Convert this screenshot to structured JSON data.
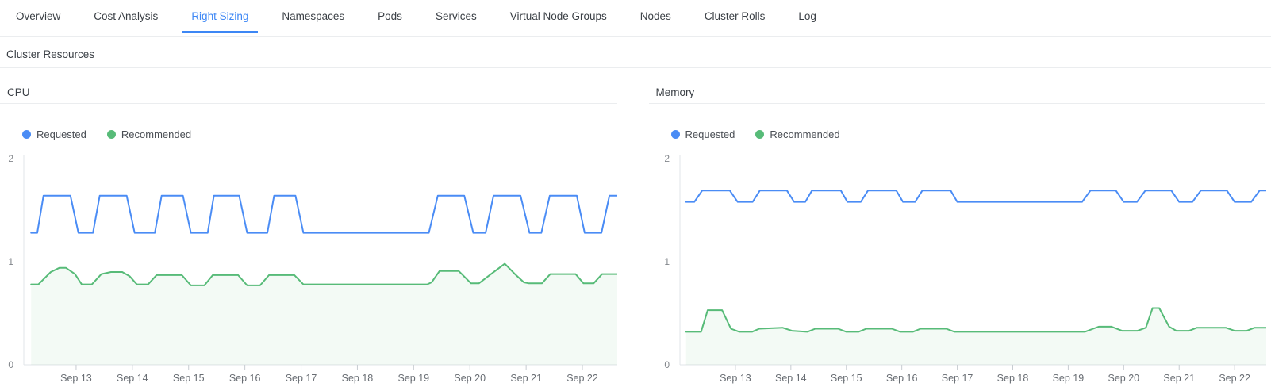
{
  "colors": {
    "accent": "#3d87f5",
    "requested": "#4a8cf5",
    "recommended": "#57bb78"
  },
  "tabs": {
    "items": [
      {
        "label": "Overview",
        "active": false
      },
      {
        "label": "Cost Analysis",
        "active": false
      },
      {
        "label": "Right Sizing",
        "active": true
      },
      {
        "label": "Namespaces",
        "active": false
      },
      {
        "label": "Pods",
        "active": false
      },
      {
        "label": "Services",
        "active": false
      },
      {
        "label": "Virtual Node Groups",
        "active": false
      },
      {
        "label": "Nodes",
        "active": false
      },
      {
        "label": "Cluster Rolls",
        "active": false
      },
      {
        "label": "Log",
        "active": false
      }
    ]
  },
  "section": {
    "title": "Cluster Resources"
  },
  "chart_data": [
    {
      "type": "line",
      "title": "CPU",
      "ylim": [
        0,
        2
      ],
      "yticks": [
        0,
        1,
        2
      ],
      "x_domain": [
        12.07,
        22.62
      ],
      "x_unit": "date (September)",
      "grid": false,
      "legend_position": "top-left",
      "x_ticks": {
        "values": [
          13,
          14,
          15,
          16,
          17,
          18,
          19,
          20,
          21,
          22
        ],
        "labels": [
          "Sep 13",
          "Sep 14",
          "Sep 15",
          "Sep 16",
          "Sep 17",
          "Sep 18",
          "Sep 19",
          "Sep 20",
          "Sep 21",
          "Sep 22"
        ]
      },
      "layout": {
        "axis_x": 30
      },
      "series": [
        {
          "name": "Requested",
          "color": "#4a8cf5",
          "fill": false,
          "points": [
            [
              12.2,
              1.28
            ],
            [
              12.31,
              1.28
            ],
            [
              12.42,
              1.64
            ],
            [
              12.9,
              1.64
            ],
            [
              13.04,
              1.28
            ],
            [
              13.3,
              1.28
            ],
            [
              13.42,
              1.64
            ],
            [
              13.9,
              1.64
            ],
            [
              14.04,
              1.28
            ],
            [
              14.4,
              1.28
            ],
            [
              14.52,
              1.64
            ],
            [
              14.9,
              1.64
            ],
            [
              15.04,
              1.28
            ],
            [
              15.34,
              1.28
            ],
            [
              15.45,
              1.64
            ],
            [
              15.9,
              1.64
            ],
            [
              16.04,
              1.28
            ],
            [
              16.4,
              1.28
            ],
            [
              16.52,
              1.64
            ],
            [
              16.9,
              1.64
            ],
            [
              17.04,
              1.28
            ],
            [
              19.27,
              1.28
            ],
            [
              19.43,
              1.64
            ],
            [
              19.9,
              1.64
            ],
            [
              20.06,
              1.28
            ],
            [
              20.28,
              1.28
            ],
            [
              20.42,
              1.64
            ],
            [
              20.9,
              1.64
            ],
            [
              21.06,
              1.28
            ],
            [
              21.27,
              1.28
            ],
            [
              21.42,
              1.64
            ],
            [
              21.9,
              1.64
            ],
            [
              22.04,
              1.28
            ],
            [
              22.34,
              1.28
            ],
            [
              22.48,
              1.64
            ],
            [
              22.62,
              1.64
            ]
          ]
        },
        {
          "name": "Recommended",
          "color": "#57bb78",
          "fill": true,
          "fill_color": "rgba(87,187,120,0.07)",
          "points": [
            [
              12.2,
              0.78
            ],
            [
              12.33,
              0.78
            ],
            [
              12.55,
              0.9
            ],
            [
              12.7,
              0.94
            ],
            [
              12.82,
              0.94
            ],
            [
              12.98,
              0.88
            ],
            [
              13.1,
              0.78
            ],
            [
              13.28,
              0.78
            ],
            [
              13.45,
              0.88
            ],
            [
              13.62,
              0.9
            ],
            [
              13.82,
              0.9
            ],
            [
              13.95,
              0.86
            ],
            [
              14.08,
              0.78
            ],
            [
              14.28,
              0.78
            ],
            [
              14.43,
              0.87
            ],
            [
              14.88,
              0.87
            ],
            [
              15.04,
              0.77
            ],
            [
              15.28,
              0.77
            ],
            [
              15.43,
              0.87
            ],
            [
              15.88,
              0.87
            ],
            [
              16.04,
              0.77
            ],
            [
              16.27,
              0.77
            ],
            [
              16.43,
              0.87
            ],
            [
              16.88,
              0.87
            ],
            [
              17.04,
              0.78
            ],
            [
              19.24,
              0.78
            ],
            [
              19.32,
              0.8
            ],
            [
              19.46,
              0.91
            ],
            [
              19.8,
              0.91
            ],
            [
              20.02,
              0.79
            ],
            [
              20.16,
              0.79
            ],
            [
              20.35,
              0.87
            ],
            [
              20.62,
              0.98
            ],
            [
              20.8,
              0.88
            ],
            [
              20.96,
              0.8
            ],
            [
              21.05,
              0.79
            ],
            [
              21.28,
              0.79
            ],
            [
              21.43,
              0.88
            ],
            [
              21.88,
              0.88
            ],
            [
              22.02,
              0.79
            ],
            [
              22.2,
              0.79
            ],
            [
              22.35,
              0.88
            ],
            [
              22.62,
              0.88
            ]
          ]
        }
      ]
    },
    {
      "type": "line",
      "title": "Memory",
      "ylim": [
        0,
        2
      ],
      "yticks": [
        0,
        1,
        2
      ],
      "x_domain": [
        12.0,
        22.57
      ],
      "x_unit": "date (September)",
      "grid": false,
      "legend_position": "top-left",
      "x_ticks": {
        "values": [
          13,
          14,
          15,
          16,
          17,
          18,
          19,
          20,
          21,
          22
        ],
        "labels": [
          "Sep 13",
          "Sep 14",
          "Sep 15",
          "Sep 16",
          "Sep 17",
          "Sep 18",
          "Sep 19",
          "Sep 20",
          "Sep 21",
          "Sep 22"
        ]
      },
      "layout": {
        "axis_x": 39
      },
      "series": [
        {
          "name": "Requested",
          "color": "#4a8cf5",
          "fill": false,
          "points": [
            [
              12.11,
              1.58
            ],
            [
              12.26,
              1.58
            ],
            [
              12.4,
              1.69
            ],
            [
              12.9,
              1.69
            ],
            [
              13.04,
              1.58
            ],
            [
              13.31,
              1.58
            ],
            [
              13.44,
              1.69
            ],
            [
              13.93,
              1.69
            ],
            [
              14.06,
              1.58
            ],
            [
              14.26,
              1.58
            ],
            [
              14.38,
              1.69
            ],
            [
              14.9,
              1.69
            ],
            [
              15.02,
              1.58
            ],
            [
              15.26,
              1.58
            ],
            [
              15.39,
              1.69
            ],
            [
              15.9,
              1.69
            ],
            [
              16.02,
              1.58
            ],
            [
              16.24,
              1.58
            ],
            [
              16.37,
              1.69
            ],
            [
              16.88,
              1.69
            ],
            [
              17.0,
              1.58
            ],
            [
              19.25,
              1.58
            ],
            [
              19.4,
              1.69
            ],
            [
              19.86,
              1.69
            ],
            [
              20.0,
              1.58
            ],
            [
              20.24,
              1.58
            ],
            [
              20.39,
              1.69
            ],
            [
              20.86,
              1.69
            ],
            [
              21.0,
              1.58
            ],
            [
              21.24,
              1.58
            ],
            [
              21.39,
              1.69
            ],
            [
              21.86,
              1.69
            ],
            [
              22.0,
              1.58
            ],
            [
              22.3,
              1.58
            ],
            [
              22.45,
              1.69
            ],
            [
              22.57,
              1.69
            ]
          ]
        },
        {
          "name": "Recommended",
          "color": "#57bb78",
          "fill": true,
          "fill_color": "rgba(87,187,120,0.07)",
          "points": [
            [
              12.11,
              0.32
            ],
            [
              12.38,
              0.32
            ],
            [
              12.5,
              0.53
            ],
            [
              12.76,
              0.53
            ],
            [
              12.92,
              0.35
            ],
            [
              13.07,
              0.32
            ],
            [
              13.3,
              0.32
            ],
            [
              13.43,
              0.35
            ],
            [
              13.85,
              0.36
            ],
            [
              14.02,
              0.33
            ],
            [
              14.3,
              0.32
            ],
            [
              14.44,
              0.35
            ],
            [
              14.85,
              0.35
            ],
            [
              15.0,
              0.32
            ],
            [
              15.22,
              0.32
            ],
            [
              15.36,
              0.35
            ],
            [
              15.82,
              0.35
            ],
            [
              15.97,
              0.32
            ],
            [
              16.2,
              0.32
            ],
            [
              16.34,
              0.35
            ],
            [
              16.8,
              0.35
            ],
            [
              16.95,
              0.32
            ],
            [
              19.3,
              0.32
            ],
            [
              19.45,
              0.35
            ],
            [
              19.55,
              0.37
            ],
            [
              19.78,
              0.37
            ],
            [
              19.97,
              0.33
            ],
            [
              20.25,
              0.33
            ],
            [
              20.4,
              0.36
            ],
            [
              20.52,
              0.55
            ],
            [
              20.64,
              0.55
            ],
            [
              20.82,
              0.37
            ],
            [
              20.95,
              0.33
            ],
            [
              21.18,
              0.33
            ],
            [
              21.32,
              0.36
            ],
            [
              21.84,
              0.36
            ],
            [
              22.0,
              0.33
            ],
            [
              22.22,
              0.33
            ],
            [
              22.36,
              0.36
            ],
            [
              22.57,
              0.36
            ]
          ]
        }
      ]
    }
  ]
}
